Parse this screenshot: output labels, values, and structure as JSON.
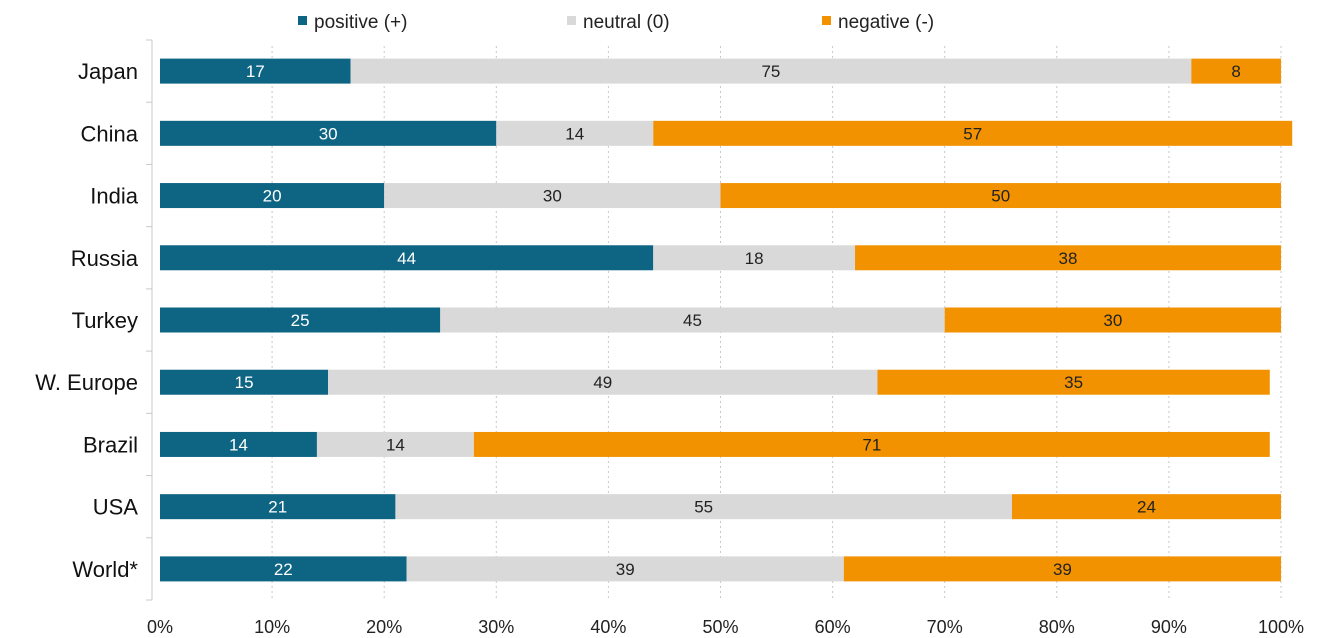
{
  "chart_data": {
    "type": "bar",
    "orientation": "horizontal",
    "stacked": true,
    "normalized_percent": true,
    "categories": [
      "Japan",
      "China",
      "India",
      "Russia",
      "Turkey",
      "W. Europe",
      "Brazil",
      "USA",
      "World*"
    ],
    "series": [
      {
        "name": "positive (+)",
        "color": "#0e6483",
        "label_color": "#ffffff",
        "values": [
          17,
          30,
          20,
          44,
          25,
          15,
          14,
          21,
          22
        ]
      },
      {
        "name": "neutral (0)",
        "color": "#d9d9d9",
        "label_color": "#222222",
        "values": [
          75,
          14,
          30,
          18,
          45,
          49,
          14,
          55,
          39
        ]
      },
      {
        "name": "negative (-)",
        "color": "#f39200",
        "label_color": "#222222",
        "values": [
          8,
          57,
          50,
          38,
          30,
          35,
          71,
          24,
          39
        ]
      }
    ],
    "x_ticks": [
      "0%",
      "10%",
      "20%",
      "30%",
      "40%",
      "50%",
      "60%",
      "70%",
      "80%",
      "90%",
      "100%"
    ],
    "xlim": [
      0,
      100
    ],
    "grid": true,
    "legend_position": "top"
  }
}
